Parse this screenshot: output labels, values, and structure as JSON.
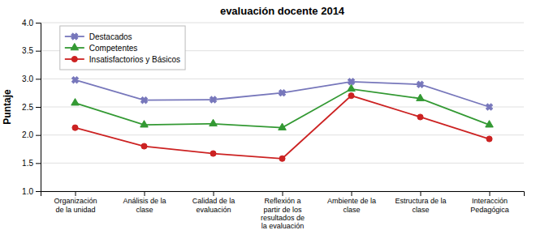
{
  "chart_data": {
    "type": "line",
    "title": "evaluación docente 2014",
    "ylabel": "Puntaje",
    "categories": [
      "Organización\nde la unidad",
      "Análisis de la\nclase",
      "Calidad de la\nevaluación",
      "Reflexión a\npartir de los\nresultados de\nla evaluación",
      "Ambiente de la\nclase",
      "Estructura de la\nclase",
      "Interacción\nPedagógica"
    ],
    "series": [
      {
        "name": "Destacados",
        "color": "#7777BB",
        "marker": "x",
        "values": [
          2.98,
          2.62,
          2.63,
          2.75,
          2.95,
          2.9,
          2.5
        ]
      },
      {
        "name": "Competentes",
        "color": "#339933",
        "marker": "triangle",
        "values": [
          2.57,
          2.18,
          2.2,
          2.13,
          2.82,
          2.65,
          2.18
        ]
      },
      {
        "name": "Insatisfactorios y Básicos",
        "color": "#CC2222",
        "marker": "circle",
        "values": [
          2.13,
          1.8,
          1.67,
          1.58,
          2.7,
          2.32,
          1.93
        ]
      }
    ],
    "ylim": [
      1.0,
      4.0
    ],
    "yticks": [
      {
        "value": 1.0,
        "label": "1.0"
      },
      1.5,
      {
        "value": 2.0,
        "label": "2.0"
      },
      2.5,
      {
        "value": 3.0,
        "label": "3.0"
      },
      3.5,
      {
        "value": 4.0,
        "label": "4.0"
      }
    ],
    "grid": true,
    "legend": "upper left"
  }
}
